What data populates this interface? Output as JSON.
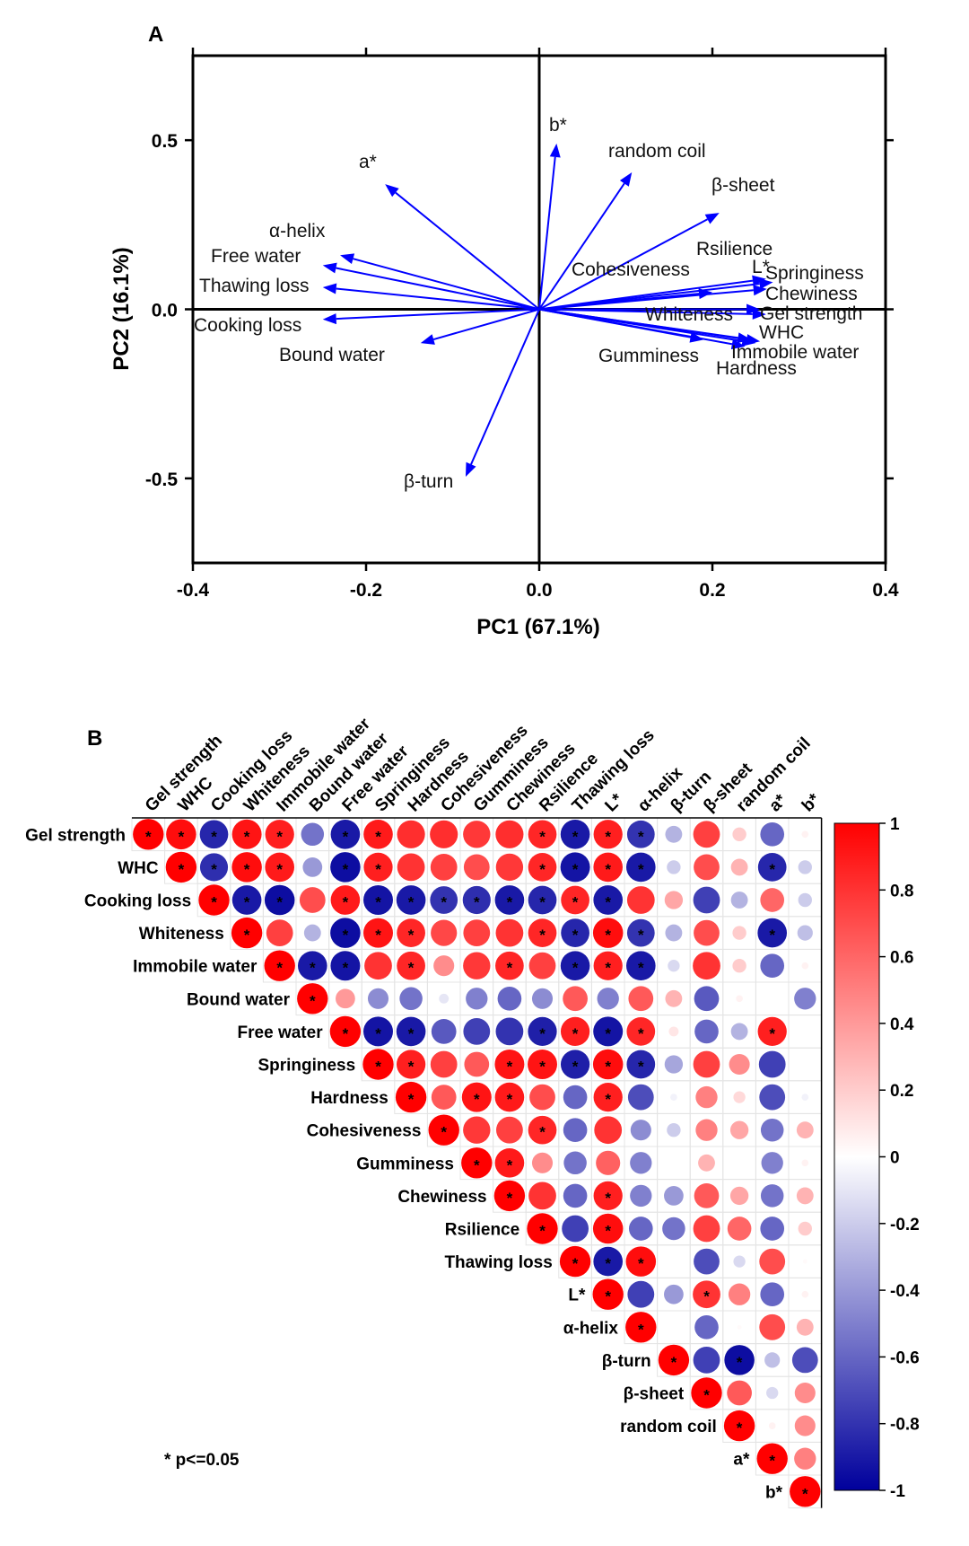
{
  "chart_data": [
    {
      "panel": "A",
      "type": "scatter",
      "subtype": "pca-biplot",
      "xlabel": "PC1 (67.1%)",
      "ylabel": "PC2 (16.1%)",
      "xlim": [
        -0.4,
        0.4
      ],
      "ylim": [
        -0.75,
        0.75
      ],
      "xticks": [
        -0.4,
        -0.2,
        0.0,
        0.2,
        0.4
      ],
      "yticks": [
        -0.5,
        0.0,
        0.5
      ],
      "xtick_labels": [
        "-0.4",
        "-0.2",
        "0.0",
        "0.2",
        "0.4"
      ],
      "ytick_labels": [
        "-0.5",
        "0.0",
        "0.5"
      ],
      "arrow_color": "#0000ff",
      "vectors": [
        {
          "label": "a*",
          "x": -0.178,
          "y": 0.37
        },
        {
          "label": "b*",
          "x": 0.02,
          "y": 0.49
        },
        {
          "label": "random coil",
          "x": 0.107,
          "y": 0.405
        },
        {
          "label": "β-sheet",
          "x": 0.208,
          "y": 0.285
        },
        {
          "label": "α-helix",
          "x": -0.23,
          "y": 0.16
        },
        {
          "label": "Free water",
          "x": -0.25,
          "y": 0.13
        },
        {
          "label": "Thawing loss",
          "x": -0.25,
          "y": 0.065
        },
        {
          "label": "Cooking loss",
          "x": -0.25,
          "y": -0.03
        },
        {
          "label": "Bound water",
          "x": -0.137,
          "y": -0.1
        },
        {
          "label": "β-turn",
          "x": -0.085,
          "y": -0.495
        },
        {
          "label": "Rsilience",
          "x": 0.262,
          "y": 0.09
        },
        {
          "label": "L*",
          "x": 0.27,
          "y": 0.08
        },
        {
          "label": "Springiness",
          "x": 0.263,
          "y": 0.06
        },
        {
          "label": "Cohesiveness",
          "x": 0.2,
          "y": 0.05
        },
        {
          "label": "Chewiness",
          "x": 0.255,
          "y": 0.0
        },
        {
          "label": "Gel strength",
          "x": 0.262,
          "y": -0.015
        },
        {
          "label": "Whiteness",
          "x": 0.245,
          "y": -0.09
        },
        {
          "label": "WHC",
          "x": 0.255,
          "y": -0.095
        },
        {
          "label": "Immobile water",
          "x": 0.25,
          "y": -0.1
        },
        {
          "label": "Hardness",
          "x": 0.238,
          "y": -0.11
        },
        {
          "label": "Gumminess",
          "x": 0.19,
          "y": -0.09
        }
      ]
    },
    {
      "panel": "B",
      "type": "heatmap",
      "subtype": "correlation-matrix-upper",
      "variables": [
        "Gel strength",
        "WHC",
        "Cooking loss",
        "Whiteness",
        "Immobile water",
        "Bound water",
        "Free water",
        "Springiness",
        "Hardness",
        "Cohesiveness",
        "Gumminess",
        "Chewiness",
        "Rsilience",
        "Thawing loss",
        "L*",
        "α-helix",
        "β-turn",
        "β-sheet",
        "random coil",
        "a*",
        "b*"
      ],
      "rows": [
        [
          1,
          0.95,
          -0.85,
          0.92,
          0.88,
          -0.55,
          -0.9,
          0.9,
          0.82,
          0.82,
          0.78,
          0.82,
          0.85,
          -0.9,
          0.88,
          -0.8,
          -0.3,
          0.75,
          0.2,
          -0.6,
          0.05
        ],
        [
          1,
          -0.82,
          0.95,
          0.9,
          -0.4,
          -0.95,
          0.88,
          0.8,
          0.75,
          0.7,
          0.78,
          0.85,
          -0.92,
          0.9,
          -0.9,
          -0.2,
          0.7,
          0.3,
          -0.85,
          -0.2
        ],
        [
          1,
          -0.9,
          -0.95,
          0.7,
          0.9,
          -0.92,
          -0.9,
          -0.8,
          -0.82,
          -0.9,
          -0.85,
          0.85,
          -0.9,
          0.8,
          0.35,
          -0.75,
          -0.3,
          0.6,
          -0.2
        ],
        [
          1,
          0.75,
          -0.3,
          -0.95,
          0.92,
          0.85,
          0.72,
          0.75,
          0.8,
          0.85,
          -0.85,
          0.95,
          -0.8,
          -0.3,
          0.7,
          0.2,
          -0.9,
          -0.25
        ],
        [
          1,
          -0.9,
          -0.92,
          0.8,
          0.85,
          0.45,
          0.78,
          0.85,
          0.75,
          -0.9,
          0.88,
          -0.9,
          -0.15,
          0.8,
          0.2,
          -0.6,
          0.05
        ],
        [
          1,
          0.4,
          -0.45,
          -0.55,
          -0.1,
          -0.5,
          -0.6,
          -0.45,
          0.65,
          -0.5,
          0.65,
          0.3,
          -0.65,
          0.05,
          0.0,
          -0.5
        ],
        [
          1,
          -0.92,
          -0.9,
          -0.65,
          -0.75,
          -0.8,
          -0.88,
          0.88,
          -0.92,
          0.85,
          0.1,
          -0.6,
          -0.3,
          0.88,
          0
        ],
        [
          1,
          0.88,
          0.75,
          0.65,
          0.92,
          0.92,
          -0.88,
          0.95,
          -0.85,
          -0.35,
          0.75,
          0.45,
          -0.75,
          0
        ],
        [
          1,
          0.65,
          0.92,
          0.9,
          0.7,
          -0.6,
          0.88,
          -0.7,
          -0.05,
          0.5,
          0.15,
          -0.7,
          -0.05
        ],
        [
          1,
          0.78,
          0.75,
          0.85,
          -0.6,
          0.8,
          -0.45,
          -0.2,
          0.5,
          0.35,
          -0.55,
          0.3
        ],
        [
          1,
          0.9,
          0.45,
          -0.55,
          0.62,
          -0.5,
          0,
          0.3,
          0,
          -0.5,
          0.05
        ],
        [
          1,
          0.8,
          -0.6,
          0.88,
          -0.5,
          -0.4,
          0.65,
          0.35,
          -0.55,
          0.3
        ],
        [
          1,
          -0.75,
          0.95,
          -0.6,
          -0.55,
          0.75,
          0.6,
          -0.6,
          0.2
        ],
        [
          1,
          -0.9,
          0.95,
          0,
          -0.7,
          -0.15,
          0.7,
          0.02
        ],
        [
          1,
          -0.75,
          -0.4,
          0.8,
          0.5,
          -0.6,
          0.05
        ],
        [
          1,
          0,
          -0.6,
          0.02,
          0.7,
          0.3
        ],
        [
          1,
          -0.75,
          -0.95,
          -0.25,
          -0.7
        ],
        [
          1,
          0.65,
          -0.15,
          0.45
        ],
        [
          1,
          0.05,
          0.45
        ],
        [
          1,
          0.5
        ],
        [
          1
        ]
      ],
      "significant": [
        [
          1,
          1,
          1,
          1,
          1,
          0,
          1,
          1,
          0,
          0,
          0,
          0,
          1,
          1,
          1,
          1,
          0,
          0,
          0,
          0,
          0
        ],
        [
          1,
          1,
          1,
          1,
          0,
          1,
          1,
          0,
          0,
          0,
          0,
          1,
          1,
          1,
          1,
          0,
          0,
          0,
          1,
          0
        ],
        [
          1,
          1,
          1,
          0,
          1,
          1,
          1,
          1,
          1,
          1,
          1,
          1,
          1,
          0,
          0,
          0,
          0,
          0,
          0
        ],
        [
          1,
          0,
          0,
          1,
          1,
          1,
          0,
          0,
          0,
          1,
          1,
          1,
          1,
          0,
          0,
          0,
          1,
          0
        ],
        [
          1,
          1,
          1,
          0,
          1,
          0,
          0,
          1,
          0,
          1,
          1,
          1,
          0,
          0,
          0,
          0,
          0
        ],
        [
          1,
          0,
          0,
          0,
          0,
          0,
          0,
          0,
          0,
          0,
          0,
          0,
          0,
          0,
          0,
          0
        ],
        [
          1,
          1,
          1,
          0,
          0,
          0,
          1,
          1,
          1,
          1,
          0,
          0,
          0,
          1,
          0
        ],
        [
          1,
          1,
          0,
          0,
          1,
          1,
          1,
          1,
          1,
          0,
          0,
          0,
          0,
          0
        ],
        [
          1,
          0,
          1,
          1,
          0,
          0,
          1,
          0,
          0,
          0,
          0,
          0,
          0
        ],
        [
          1,
          0,
          0,
          1,
          0,
          0,
          0,
          0,
          0,
          0,
          0,
          0
        ],
        [
          1,
          1,
          0,
          0,
          0,
          0,
          0,
          0,
          0,
          0,
          0
        ],
        [
          1,
          0,
          0,
          1,
          0,
          0,
          0,
          0,
          0,
          0
        ],
        [
          1,
          0,
          1,
          0,
          0,
          0,
          0,
          0,
          0
        ],
        [
          1,
          1,
          1,
          0,
          0,
          0,
          0,
          0
        ],
        [
          1,
          0,
          0,
          1,
          0,
          0,
          0
        ],
        [
          1,
          0,
          0,
          0,
          0,
          0
        ],
        [
          1,
          0,
          1,
          0,
          0
        ],
        [
          1,
          0,
          0,
          0
        ],
        [
          1,
          0,
          0
        ],
        [
          1,
          0
        ],
        [
          1
        ]
      ],
      "colorbar": {
        "min": -1,
        "max": 1,
        "ticks": [
          "1",
          "0.8",
          "0.6",
          "0.4",
          "0.2",
          "0",
          "-0.2",
          "-0.4",
          "-0.6",
          "-0.8",
          "-1"
        ],
        "colors": {
          "negative": "#00009c",
          "zero": "#ffffff",
          "positive": "#ff0000"
        }
      },
      "significance_note": "* p<=0.05"
    }
  ],
  "panels": {
    "a_label": "A",
    "b_label": "B"
  }
}
